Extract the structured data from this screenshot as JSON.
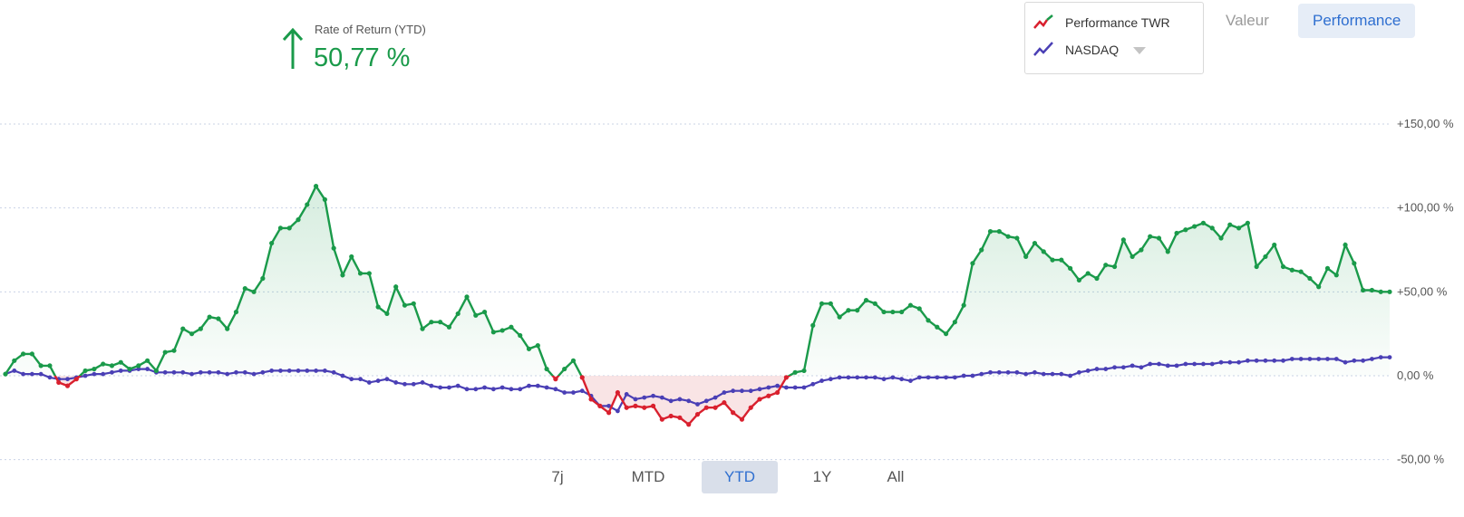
{
  "kpi": {
    "label": "Rate of Return (YTD)",
    "value": "50,77 %",
    "direction": "up",
    "icon": "up-arrow-icon",
    "color": "#1a9a4a"
  },
  "legend": {
    "items": [
      {
        "label": "Performance TWR",
        "colors": [
          "#d9202e",
          "#1a9a4a"
        ],
        "icon": "line-chart-icon"
      },
      {
        "label": "NASDAQ",
        "colors": [
          "#4a3fb5"
        ],
        "icon": "line-chart-icon",
        "has_dropdown": true
      }
    ]
  },
  "view_toggle": {
    "options": [
      "Valeur",
      "Performance"
    ],
    "active": "Performance"
  },
  "ranges": {
    "options": [
      "7j",
      "MTD",
      "YTD",
      "1Y",
      "All"
    ],
    "active": "YTD"
  },
  "chart_data": {
    "type": "line",
    "y_unit": "%",
    "ylim": [
      -50,
      150
    ],
    "y_ticks": [
      150,
      100,
      50,
      0,
      -50
    ],
    "y_tick_labels": [
      "+150,00 %",
      "+100,00 %",
      "+50,00 %",
      "0,00 %",
      "-50,00 %"
    ],
    "grid": true,
    "legend_position": "top-right",
    "colors": {
      "positive": "#1a9a4a",
      "negative": "#d9202e",
      "benchmark": "#4a3fb5"
    },
    "series": [
      {
        "name": "Performance TWR",
        "values": [
          1,
          9,
          13,
          13,
          6,
          6,
          -4,
          -6,
          -2,
          3,
          4,
          7,
          6,
          8,
          4,
          6,
          9,
          3,
          14,
          15,
          28,
          25,
          28,
          35,
          34,
          28,
          38,
          52,
          50,
          58,
          79,
          88,
          88,
          93,
          102,
          113,
          105,
          76,
          60,
          71,
          61,
          61,
          41,
          37,
          53,
          42,
          43,
          28,
          32,
          32,
          29,
          37,
          47,
          36,
          38,
          26,
          27,
          29,
          24,
          16,
          18,
          4,
          -2,
          4,
          9,
          -1,
          -14,
          -18,
          -22,
          -10,
          -19,
          -18,
          -19,
          -18,
          -26,
          -24,
          -25,
          -29,
          -23,
          -19,
          -19,
          -16,
          -22,
          -26,
          -19,
          -14,
          -12,
          -10,
          -1,
          2,
          3,
          30,
          43,
          43,
          35,
          39,
          39,
          45,
          43,
          38,
          38,
          38,
          42,
          40,
          33,
          29,
          25,
          32,
          42,
          67,
          75,
          86,
          86,
          83,
          82,
          71,
          79,
          74,
          69,
          69,
          64,
          57,
          61,
          58,
          66,
          65,
          81,
          71,
          75,
          83,
          82,
          74,
          85,
          87,
          89,
          91,
          88,
          82,
          90,
          88,
          91,
          65,
          71,
          78,
          65,
          63,
          62,
          58,
          53,
          64,
          60,
          78,
          67,
          51,
          51,
          50,
          50
        ]
      },
      {
        "name": "NASDAQ",
        "values": [
          1,
          3,
          1,
          1,
          1,
          -1,
          -2,
          -2,
          -1,
          0,
          1,
          1,
          2,
          3,
          3,
          4,
          4,
          2,
          2,
          2,
          2,
          1,
          2,
          2,
          2,
          1,
          2,
          2,
          1,
          2,
          3,
          3,
          3,
          3,
          3,
          3,
          3,
          2,
          0,
          -2,
          -2,
          -4,
          -3,
          -2,
          -4,
          -5,
          -5,
          -4,
          -6,
          -7,
          -7,
          -6,
          -8,
          -8,
          -7,
          -8,
          -7,
          -8,
          -8,
          -6,
          -6,
          -7,
          -8,
          -10,
          -10,
          -9,
          -12,
          -18,
          -18,
          -21,
          -11,
          -14,
          -13,
          -12,
          -13,
          -15,
          -14,
          -15,
          -17,
          -15,
          -13,
          -10,
          -9,
          -9,
          -9,
          -8,
          -7,
          -6,
          -7,
          -7,
          -7,
          -5,
          -3,
          -2,
          -1,
          -1,
          -1,
          -1,
          -1,
          -2,
          -1,
          -2,
          -3,
          -1,
          -1,
          -1,
          -1,
          -1,
          0,
          0,
          1,
          2,
          2,
          2,
          2,
          1,
          2,
          1,
          1,
          1,
          0,
          2,
          3,
          4,
          4,
          5,
          5,
          6,
          5,
          7,
          7,
          6,
          6,
          7,
          7,
          7,
          7,
          8,
          8,
          8,
          9,
          9,
          9,
          9,
          9,
          10,
          10,
          10,
          10,
          10,
          10,
          8,
          9,
          9,
          10,
          11,
          11
        ]
      }
    ]
  }
}
